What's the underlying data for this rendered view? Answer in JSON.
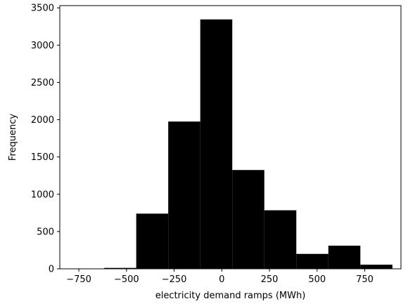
{
  "chart_data": {
    "type": "bar",
    "subtype": "histogram",
    "title": "",
    "xlabel": "electricity demand ramps (MWh)",
    "ylabel": "Frequency",
    "xlim": [
      -850,
      940
    ],
    "ylim": [
      0,
      3530
    ],
    "xticks": [
      -750,
      -500,
      -250,
      0,
      250,
      500,
      750
    ],
    "xtick_labels": [
      "−750",
      "−500",
      "−250",
      "0",
      "250",
      "500",
      "750"
    ],
    "yticks": [
      0,
      500,
      1000,
      1500,
      2000,
      2500,
      3000,
      3500
    ],
    "ytick_labels": [
      "0",
      "500",
      "1000",
      "1500",
      "2000",
      "2500",
      "3000",
      "3500"
    ],
    "grid": false,
    "bar_color": "#000000",
    "bins": [
      {
        "x0": -785,
        "x1": -617,
        "count": 2
      },
      {
        "x0": -617,
        "x1": -449,
        "count": 12
      },
      {
        "x0": -449,
        "x1": -281,
        "count": 740
      },
      {
        "x0": -281,
        "x1": -113,
        "count": 1975
      },
      {
        "x0": -113,
        "x1": 55,
        "count": 3345
      },
      {
        "x0": 55,
        "x1": 223,
        "count": 1325
      },
      {
        "x0": 223,
        "x1": 391,
        "count": 785
      },
      {
        "x0": 391,
        "x1": 559,
        "count": 200
      },
      {
        "x0": 559,
        "x1": 727,
        "count": 310
      },
      {
        "x0": 727,
        "x1": 895,
        "count": 55
      }
    ]
  }
}
